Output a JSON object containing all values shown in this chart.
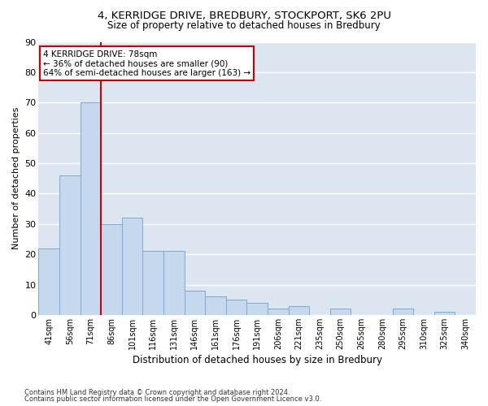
{
  "title_line1": "4, KERRIDGE DRIVE, BREDBURY, STOCKPORT, SK6 2PU",
  "title_line2": "Size of property relative to detached houses in Bredbury",
  "xlabel": "Distribution of detached houses by size in Bredbury",
  "ylabel": "Number of detached properties",
  "categories": [
    "41sqm",
    "56sqm",
    "71sqm",
    "86sqm",
    "101sqm",
    "116sqm",
    "131sqm",
    "146sqm",
    "161sqm",
    "176sqm",
    "191sqm",
    "206sqm",
    "221sqm",
    "235sqm",
    "250sqm",
    "265sqm",
    "280sqm",
    "295sqm",
    "310sqm",
    "325sqm",
    "340sqm"
  ],
  "values": [
    22,
    46,
    70,
    30,
    32,
    21,
    21,
    8,
    6,
    5,
    4,
    2,
    3,
    0,
    2,
    0,
    0,
    2,
    0,
    1,
    0
  ],
  "bar_color": "#c5d8ee",
  "bar_edge_color": "#7aabcf",
  "vline_color": "#cc0000",
  "vline_index": 2.5,
  "annotation_text": "4 KERRIDGE DRIVE: 78sqm\n← 36% of detached houses are smaller (90)\n64% of semi-detached houses are larger (163) →",
  "annotation_box_color": "#ffffff",
  "annotation_box_edge_color": "#cc0000",
  "ylim": [
    0,
    90
  ],
  "yticks": [
    0,
    10,
    20,
    30,
    40,
    50,
    60,
    70,
    80,
    90
  ],
  "grid_color": "#ffffff",
  "bg_color": "#dce6f1",
  "fig_bg_color": "#ffffff",
  "footnote1": "Contains HM Land Registry data © Crown copyright and database right 2024.",
  "footnote2": "Contains public sector information licensed under the Open Government Licence v3.0."
}
